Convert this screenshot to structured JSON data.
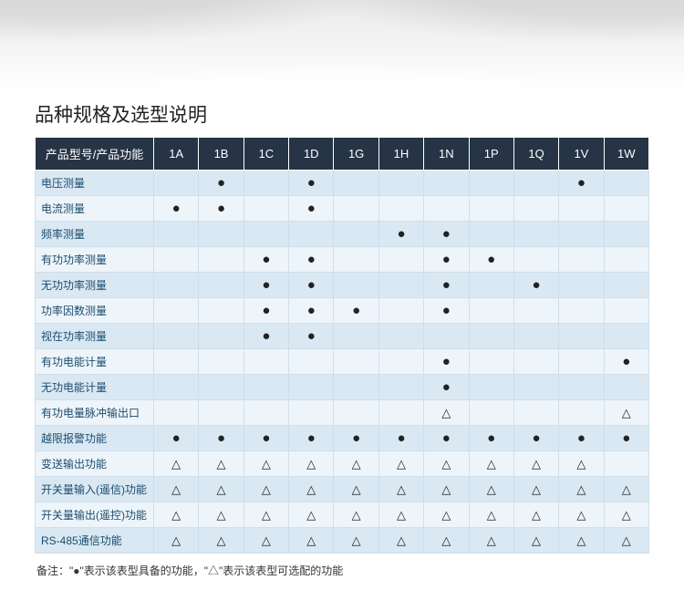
{
  "title": "品种规格及选型说明",
  "header_label": "产品型号/产品功能",
  "columns": [
    "1A",
    "1B",
    "1C",
    "1D",
    "1G",
    "1H",
    "1N",
    "1P",
    "1Q",
    "1V",
    "1W"
  ],
  "symbols": {
    "dot": "●",
    "tri": "△",
    "none": ""
  },
  "colors": {
    "header_bg": "#263445",
    "header_fg": "#ffffff",
    "row_odd": "#d9e8f2",
    "row_even": "#eef5fa",
    "border": "#cfdfea",
    "label_fg": "#1a4c6e"
  },
  "rows": [
    {
      "label": "电压测量",
      "cells": [
        "",
        "dot",
        "",
        "dot",
        "",
        "",
        "",
        "",
        "",
        "dot",
        ""
      ]
    },
    {
      "label": "电流测量",
      "cells": [
        "dot",
        "dot",
        "",
        "dot",
        "",
        "",
        "",
        "",
        "",
        "",
        ""
      ]
    },
    {
      "label": "频率测量",
      "cells": [
        "",
        "",
        "",
        "",
        "",
        "dot",
        "dot",
        "",
        "",
        "",
        ""
      ]
    },
    {
      "label": "有功功率测量",
      "cells": [
        "",
        "",
        "dot",
        "dot",
        "",
        "",
        "dot",
        "dot",
        "",
        "",
        ""
      ]
    },
    {
      "label": "无功功率测量",
      "cells": [
        "",
        "",
        "dot",
        "dot",
        "",
        "",
        "dot",
        "",
        "dot",
        "",
        ""
      ]
    },
    {
      "label": "功率因数测量",
      "cells": [
        "",
        "",
        "dot",
        "dot",
        "dot",
        "",
        "dot",
        "",
        "",
        "",
        ""
      ]
    },
    {
      "label": "视在功率测量",
      "cells": [
        "",
        "",
        "dot",
        "dot",
        "",
        "",
        "",
        "",
        "",
        "",
        ""
      ]
    },
    {
      "label": "有功电能计量",
      "cells": [
        "",
        "",
        "",
        "",
        "",
        "",
        "dot",
        "",
        "",
        "",
        "dot"
      ]
    },
    {
      "label": "无功电能计量",
      "cells": [
        "",
        "",
        "",
        "",
        "",
        "",
        "dot",
        "",
        "",
        "",
        ""
      ]
    },
    {
      "label": "有功电量脉冲输出口",
      "cells": [
        "",
        "",
        "",
        "",
        "",
        "",
        "tri",
        "",
        "",
        "",
        "tri"
      ]
    },
    {
      "label": "越限报警功能",
      "cells": [
        "dot",
        "dot",
        "dot",
        "dot",
        "dot",
        "dot",
        "dot",
        "dot",
        "dot",
        "dot",
        "dot"
      ]
    },
    {
      "label": "变送输出功能",
      "cells": [
        "tri",
        "tri",
        "tri",
        "tri",
        "tri",
        "tri",
        "tri",
        "tri",
        "tri",
        "tri",
        ""
      ]
    },
    {
      "label": "开关量输入(遥信)功能",
      "cells": [
        "tri",
        "tri",
        "tri",
        "tri",
        "tri",
        "tri",
        "tri",
        "tri",
        "tri",
        "tri",
        "tri"
      ]
    },
    {
      "label": "开关量输出(遥控)功能",
      "cells": [
        "tri",
        "tri",
        "tri",
        "tri",
        "tri",
        "tri",
        "tri",
        "tri",
        "tri",
        "tri",
        "tri"
      ]
    },
    {
      "label": "RS-485通信功能",
      "cells": [
        "tri",
        "tri",
        "tri",
        "tri",
        "tri",
        "tri",
        "tri",
        "tri",
        "tri",
        "tri",
        "tri"
      ]
    }
  ],
  "note": "备注：\"●\"表示该表型具备的功能，\"△\"表示该表型可选配的功能"
}
